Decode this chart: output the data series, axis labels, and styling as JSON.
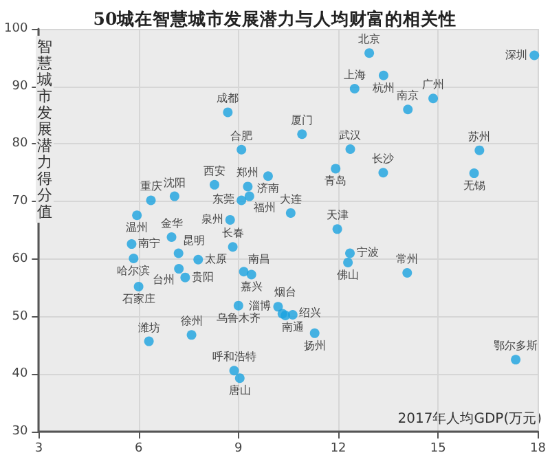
{
  "chart_data": {
    "type": "scatter",
    "title": "50城在智慧城市发展潜力与人均财富的相关性",
    "xlabel": "2017年人均GDP(万元)",
    "ylabel": "智慧城市发展潜力得分值",
    "xlim": [
      3,
      18
    ],
    "xticks": [
      3,
      6,
      9,
      12,
      15,
      18
    ],
    "ylim": [
      30,
      100
    ],
    "yticks": [
      30,
      40,
      50,
      60,
      70,
      80,
      90,
      100
    ],
    "grid": true,
    "marker": "circle",
    "series": [
      {
        "color": "#1aa3e0",
        "x": [
          8.68,
          9.09,
          8.28,
          9.28,
          9.89,
          9.33,
          9.09,
          7.08,
          6.37,
          5.95,
          12.93,
          13.36,
          12.49,
          14.85,
          14.09,
          17.89,
          10.91,
          12.36,
          16.24,
          11.92,
          13.35,
          16.08,
          10.57,
          11.97,
          5.79,
          6.99,
          5.85,
          7.2,
          7.79,
          7.21,
          7.4,
          6.0,
          8.83,
          8.75,
          9.16,
          9.39,
          9.0,
          6.31,
          7.59,
          8.87,
          9.04,
          12.35,
          12.29,
          14.07,
          10.63,
          10.41,
          11.29,
          17.33,
          10.19,
          10.32
        ],
        "values": [
          85.5,
          79.0,
          72.9,
          72.6,
          74.4,
          70.9,
          70.2,
          70.9,
          70.2,
          67.6,
          95.8,
          91.9,
          89.6,
          87.9,
          86.0,
          95.4,
          81.7,
          79.1,
          78.9,
          75.7,
          75.0,
          74.9,
          68.0,
          65.2,
          62.6,
          63.8,
          60.1,
          61.0,
          59.9,
          58.3,
          56.8,
          55.2,
          62.1,
          66.8,
          57.8,
          57.3,
          51.9,
          45.7,
          46.8,
          40.6,
          39.3,
          61.0,
          59.4,
          57.6,
          50.3,
          50.2,
          47.1,
          42.5,
          51.7,
          50.5
        ]
      }
    ],
    "annotations": [
      {
        "text": "成都",
        "x": 8.68,
        "y": 85.5
      },
      {
        "text": "合肥",
        "x": 9.09,
        "y": 79.0
      },
      {
        "text": "西安",
        "x": 8.28,
        "y": 72.9
      },
      {
        "text": "郑州",
        "x": 9.28,
        "y": 72.6
      },
      {
        "text": "济南",
        "x": 9.89,
        "y": 74.4
      },
      {
        "text": "福州",
        "x": 9.33,
        "y": 70.9
      },
      {
        "text": "东莞",
        "x": 9.09,
        "y": 70.2
      },
      {
        "text": "沈阳",
        "x": 7.08,
        "y": 70.9
      },
      {
        "text": "重庆",
        "x": 6.37,
        "y": 70.2
      },
      {
        "text": "温州",
        "x": 5.95,
        "y": 67.6
      },
      {
        "text": "北京",
        "x": 12.93,
        "y": 95.8
      },
      {
        "text": "杭州",
        "x": 13.36,
        "y": 91.9
      },
      {
        "text": "上海",
        "x": 12.49,
        "y": 89.6
      },
      {
        "text": "广州",
        "x": 14.85,
        "y": 87.9
      },
      {
        "text": "南京",
        "x": 14.09,
        "y": 86.0
      },
      {
        "text": "深圳",
        "x": 17.89,
        "y": 95.4
      },
      {
        "text": "厦门",
        "x": 10.91,
        "y": 81.7
      },
      {
        "text": "武汉",
        "x": 12.36,
        "y": 79.1
      },
      {
        "text": "苏州",
        "x": 16.24,
        "y": 78.9
      },
      {
        "text": "青岛",
        "x": 11.92,
        "y": 75.7
      },
      {
        "text": "长沙",
        "x": 13.35,
        "y": 75.0
      },
      {
        "text": "无锡",
        "x": 16.08,
        "y": 74.9
      },
      {
        "text": "大连",
        "x": 10.57,
        "y": 68.0
      },
      {
        "text": "天津",
        "x": 11.97,
        "y": 65.2
      },
      {
        "text": "南宁",
        "x": 5.79,
        "y": 62.6
      },
      {
        "text": "金华",
        "x": 6.99,
        "y": 63.8
      },
      {
        "text": "哈尔滨",
        "x": 5.85,
        "y": 60.1
      },
      {
        "text": "昆明",
        "x": 7.2,
        "y": 61.0
      },
      {
        "text": "太原",
        "x": 7.79,
        "y": 59.9
      },
      {
        "text": "台州",
        "x": 7.21,
        "y": 58.3
      },
      {
        "text": "贵阳",
        "x": 7.4,
        "y": 56.8
      },
      {
        "text": "石家庄",
        "x": 6.0,
        "y": 55.2
      },
      {
        "text": "长春",
        "x": 8.83,
        "y": 62.1
      },
      {
        "text": "泉州",
        "x": 8.75,
        "y": 66.8
      },
      {
        "text": "南昌",
        "x": 9.16,
        "y": 57.8
      },
      {
        "text": "嘉兴",
        "x": 9.39,
        "y": 57.3
      },
      {
        "text": "乌鲁木齐",
        "x": 9.0,
        "y": 51.9
      },
      {
        "text": "潍坊",
        "x": 6.31,
        "y": 45.7
      },
      {
        "text": "徐州",
        "x": 7.59,
        "y": 46.8
      },
      {
        "text": "呼和浩特",
        "x": 8.87,
        "y": 40.6
      },
      {
        "text": "唐山",
        "x": 9.04,
        "y": 39.3
      },
      {
        "text": "宁波",
        "x": 12.35,
        "y": 61.0
      },
      {
        "text": "佛山",
        "x": 12.29,
        "y": 59.4
      },
      {
        "text": "常州",
        "x": 14.07,
        "y": 57.6
      },
      {
        "text": "南通",
        "x": 10.63,
        "y": 50.3
      },
      {
        "text": "烟台",
        "x": 10.41,
        "y": 50.2
      },
      {
        "text": "扬州",
        "x": 11.29,
        "y": 47.1
      },
      {
        "text": "鄂尔多斯",
        "x": 17.33,
        "y": 42.5
      },
      {
        "text": "淄博",
        "x": 10.19,
        "y": 51.7
      },
      {
        "text": "绍兴",
        "x": 10.32,
        "y": 50.5
      }
    ]
  }
}
